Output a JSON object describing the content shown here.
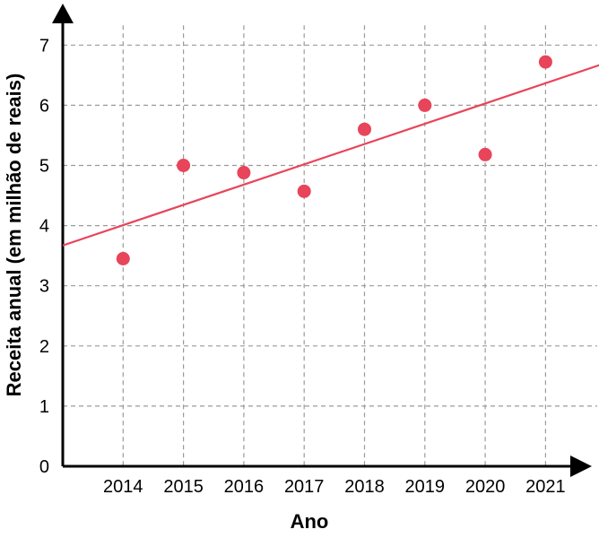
{
  "chart_data": {
    "type": "scatter",
    "title": "",
    "xlabel": "Ano",
    "ylabel": "Receita anual (em milhão de reais)",
    "x": [
      2014,
      2015,
      2016,
      2017,
      2018,
      2019,
      2020,
      2021
    ],
    "y": [
      3.45,
      5.0,
      4.88,
      4.57,
      5.6,
      6.0,
      5.18,
      6.72
    ],
    "x_ticks": [
      "2014",
      "2015",
      "2016",
      "2017",
      "2018",
      "2019",
      "2020",
      "2021"
    ],
    "y_ticks": [
      "0",
      "1",
      "2",
      "3",
      "4",
      "5",
      "6",
      "7"
    ],
    "ylim": [
      0,
      7
    ],
    "trend_line": {
      "x": [
        2013,
        2021.9
      ],
      "y": [
        3.67,
        6.67
      ]
    },
    "grid": true,
    "point_color": "#e8445a",
    "line_color": "#e8445a"
  }
}
